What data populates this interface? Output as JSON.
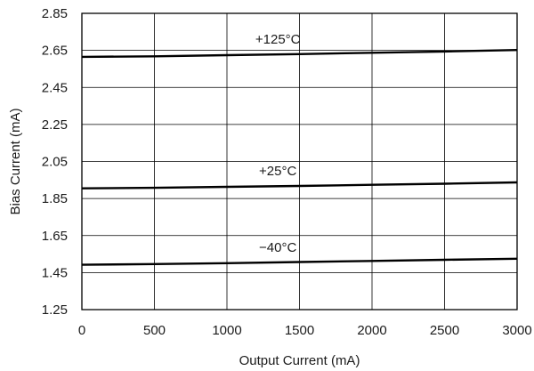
{
  "chart_data": {
    "type": "line",
    "title": "",
    "xlabel": "Output Current (mA)",
    "ylabel": "Bias Current (mA)",
    "xlim": [
      0,
      3000
    ],
    "ylim": [
      1.25,
      2.85
    ],
    "xticks": [
      0,
      500,
      1000,
      1500,
      2000,
      2500,
      3000
    ],
    "yticks": [
      1.25,
      1.45,
      1.65,
      1.85,
      2.05,
      2.25,
      2.45,
      2.65,
      2.85
    ],
    "xtick_labels": [
      "0",
      "500",
      "1000",
      "1500",
      "2000",
      "2500",
      "3000"
    ],
    "ytick_labels": [
      "1.25",
      "1.45",
      "1.65",
      "1.85",
      "2.05",
      "2.25",
      "2.45",
      "2.65",
      "2.85"
    ],
    "grid": true,
    "series": [
      {
        "name": "+125°C",
        "x": [
          0,
          500,
          1000,
          1500,
          2000,
          2500,
          3000
        ],
        "y": [
          2.615,
          2.618,
          2.624,
          2.63,
          2.637,
          2.644,
          2.652
        ]
      },
      {
        "name": "+25°C",
        "x": [
          0,
          500,
          1000,
          1500,
          2000,
          2500,
          3000
        ],
        "y": [
          1.905,
          1.908,
          1.913,
          1.918,
          1.924,
          1.93,
          1.937
        ]
      },
      {
        "name": "−40°C",
        "x": [
          0,
          500,
          1000,
          1500,
          2000,
          2500,
          3000
        ],
        "y": [
          1.492,
          1.496,
          1.501,
          1.507,
          1.513,
          1.519,
          1.525
        ]
      }
    ],
    "colors": {
      "line": "#000000",
      "grid": "#000000",
      "frame": "#000000"
    }
  }
}
